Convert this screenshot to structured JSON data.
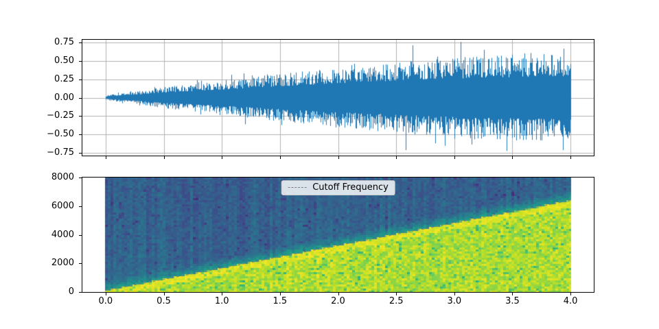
{
  "figure": {
    "background": "#ffffff",
    "description": "Two stacked matplotlib plots: a waveform of noise with linearly growing amplitude, and its spectrogram with a rising cutoff frequency line"
  },
  "chart_data": [
    {
      "type": "line",
      "name": "waveform",
      "title": "",
      "xlabel": "",
      "ylabel": "",
      "xlim": [
        -0.2,
        4.2
      ],
      "ylim": [
        -0.79,
        0.79
      ],
      "grid": true,
      "grid_color": "#b0b0b0",
      "line_color": "#1f77b4",
      "xticks": {
        "values": [
          0,
          0.5,
          1,
          1.5,
          2,
          2.5,
          3,
          3.5,
          4
        ],
        "labels": []
      },
      "yticks": {
        "values": [
          0.75,
          0.5,
          0.25,
          0,
          -0.25,
          -0.5,
          -0.75
        ],
        "labels": [
          "0.75",
          "0.50",
          "0.25",
          "0.00",
          "−0.25",
          "−0.50",
          "−0.75"
        ]
      },
      "series": [
        {
          "name": "signal",
          "description": "band-limited noise, amplitude grows roughly linearly over 4 s",
          "envelope_t": [
            0,
            0.25,
            0.5,
            1.0,
            1.5,
            2.0,
            2.5,
            3.0,
            3.5,
            4.0
          ],
          "envelope_amplitude": [
            0.03,
            0.08,
            0.14,
            0.22,
            0.31,
            0.39,
            0.46,
            0.52,
            0.56,
            0.59
          ],
          "peak_amplitude": 0.75
        }
      ]
    },
    {
      "type": "heatmap",
      "name": "spectrogram",
      "title": "",
      "xlabel": "",
      "ylabel": "",
      "colormap": "viridis",
      "xlim": [
        -0.2,
        4.2
      ],
      "ylim": [
        0,
        8000
      ],
      "x_range_data": [
        0,
        4
      ],
      "xticks": {
        "values": [
          0,
          0.5,
          1,
          1.5,
          2,
          2.5,
          3,
          3.5,
          4
        ],
        "labels": [
          "0.0",
          "0.5",
          "1.0",
          "1.5",
          "2.0",
          "2.5",
          "3.0",
          "3.5",
          "4.0"
        ]
      },
      "yticks": {
        "values": [
          0,
          2000,
          4000,
          6000,
          8000
        ],
        "labels": [
          "0",
          "2000",
          "4000",
          "6000",
          "8000"
        ]
      },
      "cutoff_line": {
        "color": "#7f7f7f",
        "style": "dashed",
        "points_t": [
          0,
          4
        ],
        "points_f": [
          100,
          6400
        ]
      },
      "legend": {
        "label": "Cutoff Frequency",
        "position": "upper center"
      },
      "regions": {
        "below_cutoff": "high energy, yellow-green",
        "above_cutoff": "low energy, blue-teal with vertical streaks"
      }
    }
  ]
}
